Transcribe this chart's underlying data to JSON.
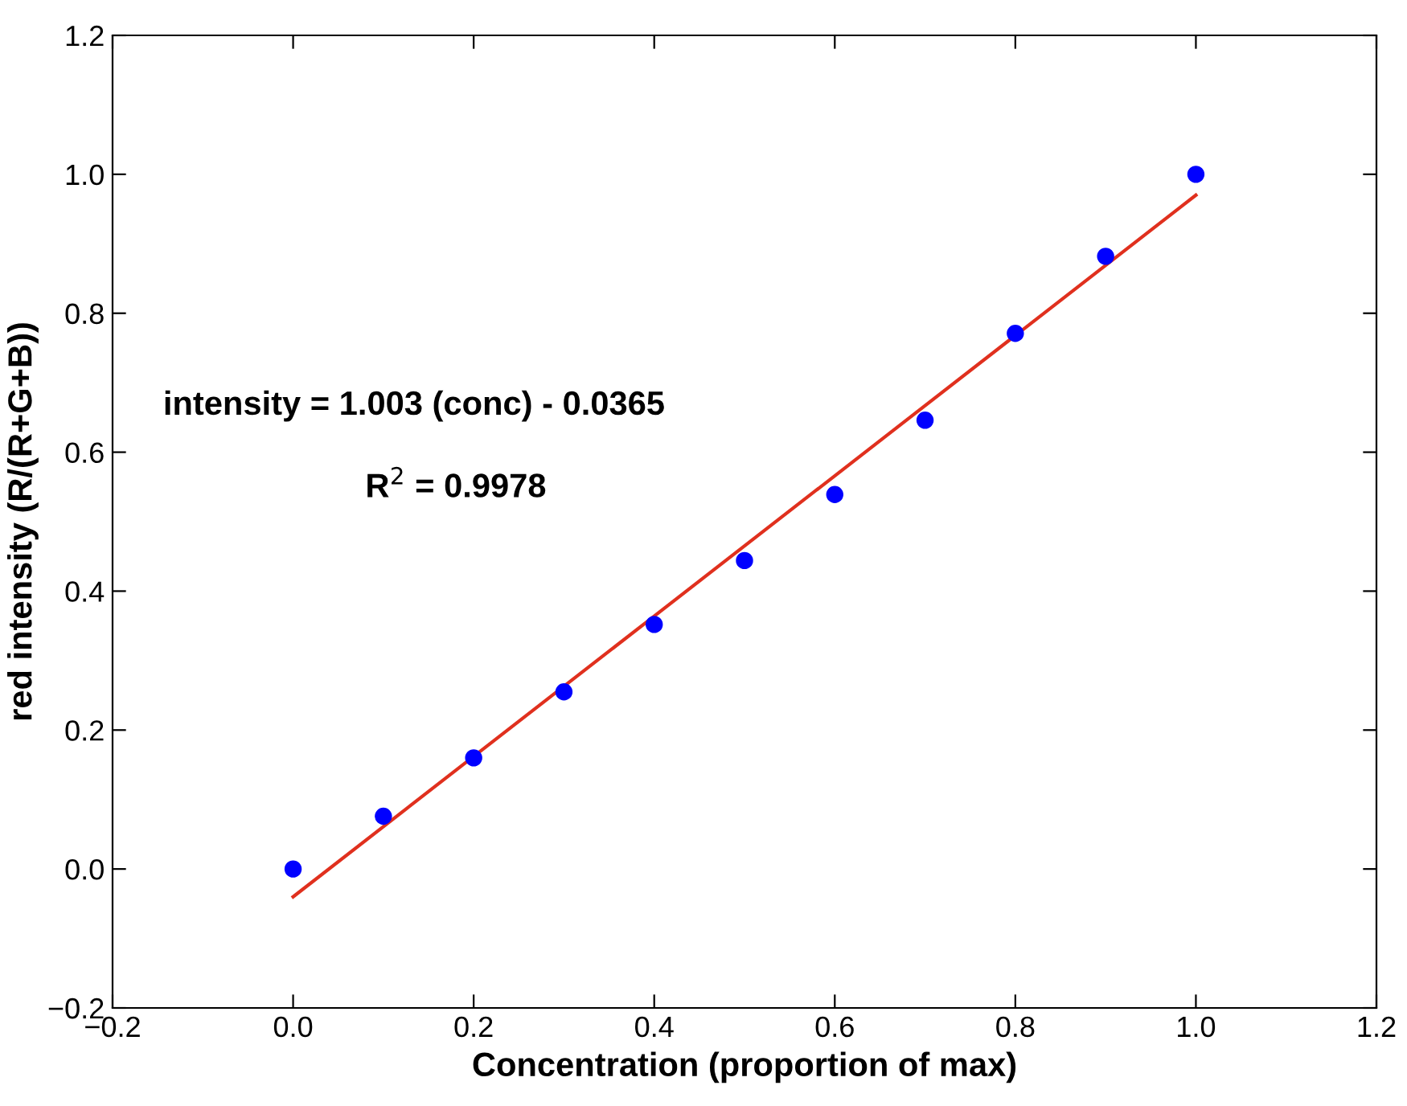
{
  "chart_data": {
    "type": "scatter",
    "xlabel": "Concentration (proportion of max)",
    "ylabel": "red intensity (R/(R+G+B))",
    "series": [
      {
        "color": "#0000ff",
        "marker": "circle",
        "x": [
          0,
          0.1,
          0.2,
          0.3,
          0.4,
          0.5,
          0.6,
          0.7,
          0.8,
          0.9,
          1.0
        ],
        "values": [
          0.0,
          0.076,
          0.16,
          0.255,
          0.352,
          0.444,
          0.539,
          0.646,
          0.771,
          0.882,
          1.0
        ]
      },
      {
        "type": "line",
        "color": "#e0301e",
        "marker": "none",
        "line_style": "solid",
        "x": [
          0,
          1.0
        ],
        "values": [
          -0.04,
          0.97
        ]
      }
    ],
    "annotations": [
      "intensity = 1.003 (conc) - 0.0365",
      "R$^{2}$ = 0.9978"
    ],
    "xlim": [
      -0.2,
      1.2
    ],
    "ylim": [
      -0.2,
      1.2
    ],
    "xticks": [
      {
        "value": -0.2,
        "label": "−0.2"
      },
      {
        "value": 0,
        "label": "0.0"
      },
      {
        "value": 0.2,
        "label": "0.2"
      },
      {
        "value": 0.4,
        "label": "0.4"
      },
      {
        "value": 0.6,
        "label": "0.6"
      },
      {
        "value": 0.8,
        "label": "0.8"
      },
      {
        "value": 1.0,
        "label": "1.0"
      },
      {
        "value": 1.2,
        "label": "1.2"
      }
    ],
    "yticks": [
      {
        "value": -0.2,
        "label": "−0.2"
      },
      {
        "value": 0,
        "label": "0.0"
      },
      {
        "value": 0.2,
        "label": "0.2"
      },
      {
        "value": 0.4,
        "label": "0.4"
      },
      {
        "value": 0.6,
        "label": "0.6"
      },
      {
        "value": 0.8,
        "label": "0.8"
      },
      {
        "value": 1.0,
        "label": "1.0"
      },
      {
        "value": 1.2,
        "label": "1.2"
      }
    ],
    "grid": false,
    "legend": false
  }
}
